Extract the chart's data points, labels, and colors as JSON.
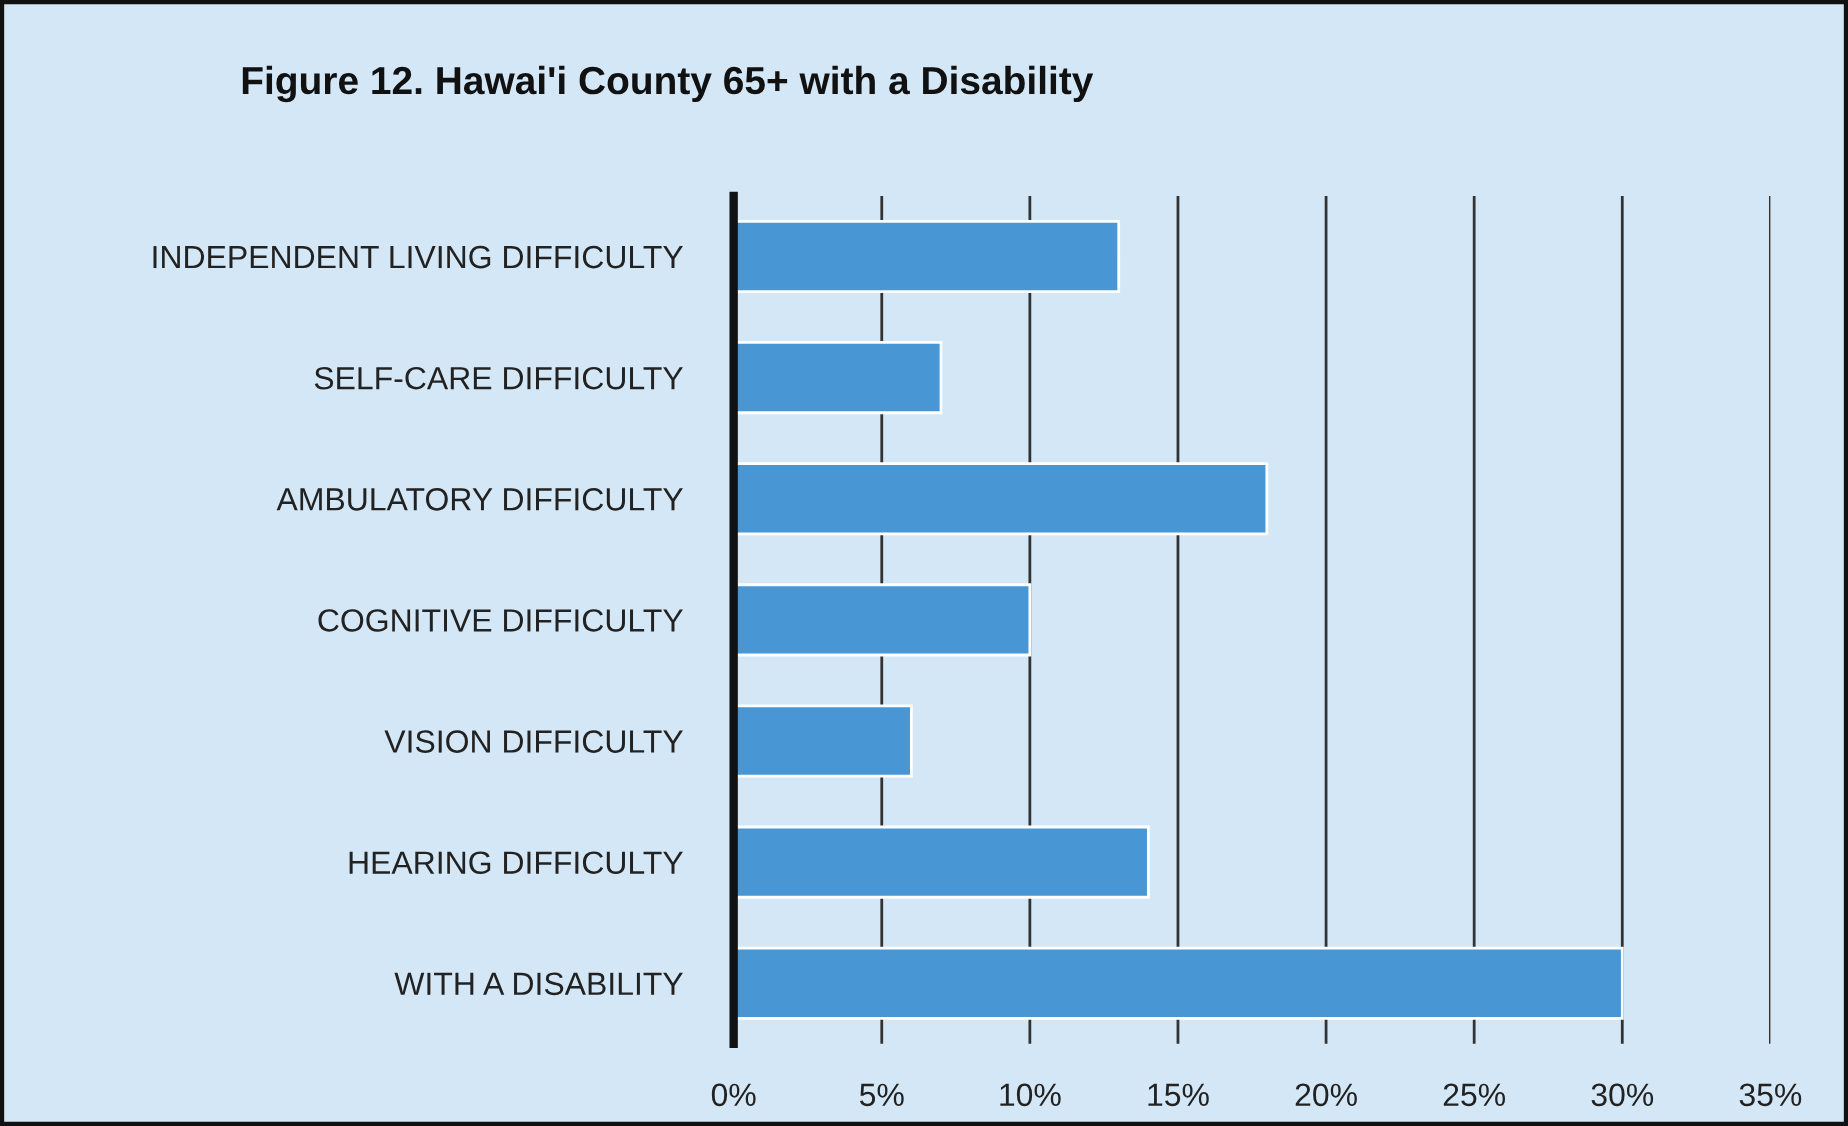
{
  "chart_data": {
    "type": "bar",
    "orientation": "horizontal",
    "title": "Figure 12. Hawai'i County 65+ with a Disability",
    "categories": [
      "INDEPENDENT LIVING DIFFICULTY",
      "SELF-CARE DIFFICULTY",
      "AMBULATORY DIFFICULTY",
      "COGNITIVE DIFFICULTY",
      "VISION DIFFICULTY",
      "HEARING DIFFICULTY",
      "WITH A DISABILITY"
    ],
    "values": [
      13,
      7,
      18,
      10,
      6,
      14,
      30
    ],
    "color": "#4896d4",
    "xlim": [
      0,
      35
    ],
    "xticks": [
      {
        "value": 0,
        "label": "0%"
      },
      {
        "value": 5,
        "label": "5%"
      },
      {
        "value": 10,
        "label": "10%"
      },
      {
        "value": 15,
        "label": "15%"
      },
      {
        "value": 20,
        "label": "20%"
      },
      {
        "value": 25,
        "label": "25%"
      },
      {
        "value": 30,
        "label": "30%"
      },
      {
        "value": 35,
        "label": "35%"
      }
    ],
    "grid": "x"
  }
}
